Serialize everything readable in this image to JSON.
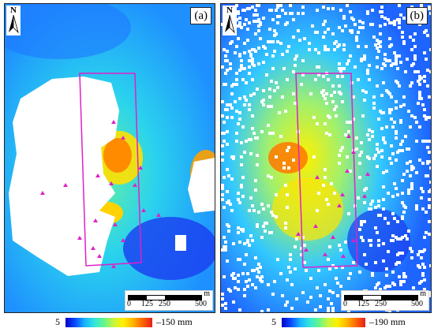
{
  "panels": [
    {
      "id": "a",
      "tag": "(a)",
      "north": "N",
      "scale": {
        "ticks": [
          "0",
          "125",
          "250",
          "500"
        ],
        "unit": "m"
      },
      "colorbar": {
        "min_label": "5",
        "max_label": "–150 mm"
      }
    },
    {
      "id": "b",
      "tag": "(b)",
      "north": "N",
      "scale": {
        "ticks": [
          "0",
          "125",
          "250",
          "500"
        ],
        "unit": "m"
      },
      "colorbar": {
        "min_label": "5",
        "max_label": "–190 mm"
      }
    }
  ],
  "colors": {
    "study_box": "#e020c8",
    "markers": "#e020c8",
    "no_data": "#ffffff"
  }
}
